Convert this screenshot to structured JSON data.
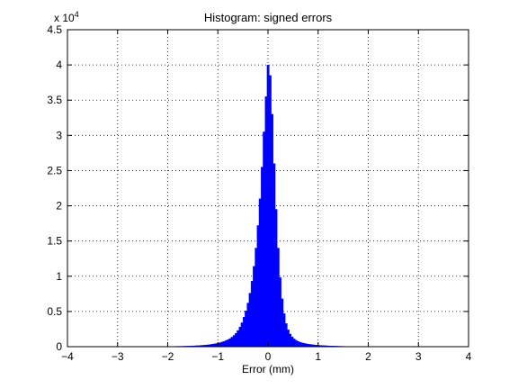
{
  "chart_data": {
    "type": "bar",
    "title": "Histogram: signed errors",
    "xlabel": "Error (mm)",
    "ylabel": "",
    "y_multiplier_base": "x 10",
    "y_multiplier_exp": "4",
    "xlim": [
      -4,
      4
    ],
    "ylim": [
      0,
      45000
    ],
    "grid": true,
    "bar_color": "#0000ff",
    "x_ticks": [
      -4,
      -3,
      -2,
      -1,
      0,
      1,
      2,
      3,
      4
    ],
    "x_tick_labels": [
      "−4",
      "−3",
      "−2",
      "−1",
      "0",
      "1",
      "2",
      "3",
      "4"
    ],
    "y_ticks": [
      0,
      5000,
      10000,
      15000,
      20000,
      25000,
      30000,
      35000,
      40000,
      45000
    ],
    "y_tick_labels": [
      "0",
      "0.5",
      "1",
      "1.5",
      "2",
      "2.5",
      "3",
      "3.5",
      "4",
      "4.5"
    ],
    "bin_width": 0.04,
    "bins": [
      {
        "x": -2.0,
        "y": 30
      },
      {
        "x": -1.96,
        "y": 35
      },
      {
        "x": -1.92,
        "y": 40
      },
      {
        "x": -1.88,
        "y": 45
      },
      {
        "x": -1.84,
        "y": 50
      },
      {
        "x": -1.8,
        "y": 55
      },
      {
        "x": -1.76,
        "y": 60
      },
      {
        "x": -1.72,
        "y": 65
      },
      {
        "x": -1.68,
        "y": 70
      },
      {
        "x": -1.64,
        "y": 80
      },
      {
        "x": -1.6,
        "y": 90
      },
      {
        "x": -1.56,
        "y": 100
      },
      {
        "x": -1.52,
        "y": 110
      },
      {
        "x": -1.48,
        "y": 120
      },
      {
        "x": -1.44,
        "y": 135
      },
      {
        "x": -1.4,
        "y": 150
      },
      {
        "x": -1.36,
        "y": 170
      },
      {
        "x": -1.32,
        "y": 190
      },
      {
        "x": -1.28,
        "y": 210
      },
      {
        "x": -1.24,
        "y": 240
      },
      {
        "x": -1.2,
        "y": 270
      },
      {
        "x": -1.16,
        "y": 300
      },
      {
        "x": -1.12,
        "y": 340
      },
      {
        "x": -1.08,
        "y": 390
      },
      {
        "x": -1.04,
        "y": 440
      },
      {
        "x": -1.0,
        "y": 500
      },
      {
        "x": -0.96,
        "y": 570
      },
      {
        "x": -0.92,
        "y": 650
      },
      {
        "x": -0.88,
        "y": 750
      },
      {
        "x": -0.84,
        "y": 860
      },
      {
        "x": -0.8,
        "y": 990
      },
      {
        "x": -0.76,
        "y": 1150
      },
      {
        "x": -0.72,
        "y": 1350
      },
      {
        "x": -0.68,
        "y": 1600
      },
      {
        "x": -0.64,
        "y": 1900
      },
      {
        "x": -0.6,
        "y": 2300
      },
      {
        "x": -0.56,
        "y": 2800
      },
      {
        "x": -0.52,
        "y": 3400
      },
      {
        "x": -0.48,
        "y": 4200
      },
      {
        "x": -0.44,
        "y": 5100
      },
      {
        "x": -0.4,
        "y": 6200
      },
      {
        "x": -0.36,
        "y": 7600
      },
      {
        "x": -0.32,
        "y": 9300
      },
      {
        "x": -0.28,
        "y": 11400
      },
      {
        "x": -0.24,
        "y": 14000
      },
      {
        "x": -0.2,
        "y": 17200
      },
      {
        "x": -0.16,
        "y": 21000
      },
      {
        "x": -0.12,
        "y": 25500
      },
      {
        "x": -0.08,
        "y": 30500
      },
      {
        "x": -0.04,
        "y": 35500
      },
      {
        "x": 0.0,
        "y": 40000
      },
      {
        "x": 0.04,
        "y": 38500
      },
      {
        "x": 0.08,
        "y": 33000
      },
      {
        "x": 0.12,
        "y": 26000
      },
      {
        "x": 0.16,
        "y": 19500
      },
      {
        "x": 0.2,
        "y": 14000
      },
      {
        "x": 0.24,
        "y": 9800
      },
      {
        "x": 0.28,
        "y": 6800
      },
      {
        "x": 0.32,
        "y": 4700
      },
      {
        "x": 0.36,
        "y": 3300
      },
      {
        "x": 0.4,
        "y": 2400
      },
      {
        "x": 0.44,
        "y": 1800
      },
      {
        "x": 0.48,
        "y": 1400
      },
      {
        "x": 0.52,
        "y": 1100
      },
      {
        "x": 0.56,
        "y": 900
      },
      {
        "x": 0.6,
        "y": 750
      },
      {
        "x": 0.64,
        "y": 640
      },
      {
        "x": 0.68,
        "y": 550
      },
      {
        "x": 0.72,
        "y": 480
      },
      {
        "x": 0.76,
        "y": 420
      },
      {
        "x": 0.8,
        "y": 370
      },
      {
        "x": 0.84,
        "y": 330
      },
      {
        "x": 0.88,
        "y": 290
      },
      {
        "x": 0.92,
        "y": 260
      },
      {
        "x": 0.96,
        "y": 230
      },
      {
        "x": 1.0,
        "y": 205
      },
      {
        "x": 1.04,
        "y": 185
      },
      {
        "x": 1.08,
        "y": 165
      },
      {
        "x": 1.12,
        "y": 150
      },
      {
        "x": 1.16,
        "y": 135
      },
      {
        "x": 1.2,
        "y": 120
      },
      {
        "x": 1.24,
        "y": 110
      },
      {
        "x": 1.28,
        "y": 100
      },
      {
        "x": 1.32,
        "y": 90
      },
      {
        "x": 1.36,
        "y": 80
      },
      {
        "x": 1.4,
        "y": 72
      },
      {
        "x": 1.44,
        "y": 65
      },
      {
        "x": 1.48,
        "y": 58
      },
      {
        "x": 1.52,
        "y": 52
      },
      {
        "x": 1.56,
        "y": 46
      },
      {
        "x": 1.6,
        "y": 40
      },
      {
        "x": 1.64,
        "y": 35
      },
      {
        "x": 1.68,
        "y": 30
      }
    ]
  }
}
